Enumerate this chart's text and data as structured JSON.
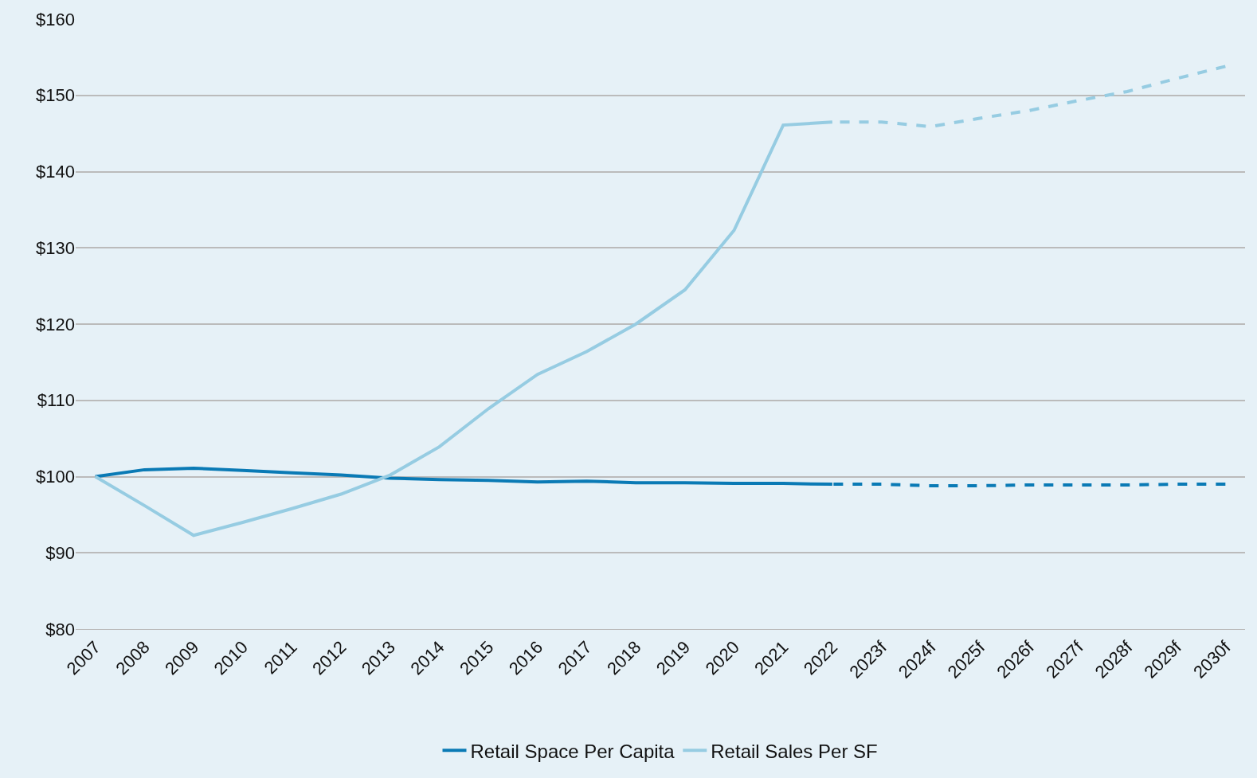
{
  "chart_data": {
    "type": "line",
    "categories": [
      "2007",
      "2008",
      "2009",
      "2010",
      "2011",
      "2012",
      "2013",
      "2014",
      "2015",
      "2016",
      "2017",
      "2018",
      "2019",
      "2020",
      "2021",
      "2022",
      "2023f",
      "2024f",
      "2025f",
      "2026f",
      "2027f",
      "2028f",
      "2029f",
      "2030f"
    ],
    "series": [
      {
        "name": "Retail Space Per Capita",
        "color": "#0a7ab5",
        "line_style": "solid",
        "values": [
          100,
          100.9,
          101.1,
          100.8,
          100.5,
          100.2,
          99.8,
          99.6,
          99.5,
          99.3,
          99.4,
          99.2,
          99.2,
          99.1,
          99.1,
          99.0,
          null,
          null,
          null,
          null,
          null,
          null,
          null,
          null
        ]
      },
      {
        "name": "Retail Sales Per SF",
        "color": "#96cce2",
        "line_style": "solid",
        "values": [
          100,
          96.2,
          92.3,
          94.0,
          95.8,
          97.7,
          100.2,
          103.9,
          108.9,
          113.4,
          116.4,
          120.0,
          124.5,
          132.3,
          146.1,
          146.5,
          null,
          null,
          null,
          null,
          null,
          null,
          null,
          null
        ]
      },
      {
        "color": "#0a7ab5",
        "line_style": "dashed",
        "values": [
          null,
          null,
          null,
          null,
          null,
          null,
          null,
          null,
          null,
          null,
          null,
          null,
          null,
          null,
          null,
          99.0,
          99.0,
          98.8,
          98.8,
          98.9,
          98.9,
          98.9,
          99.0,
          99.0
        ]
      },
      {
        "color": "#96cce2",
        "line_style": "dashed",
        "values": [
          null,
          null,
          null,
          null,
          null,
          null,
          null,
          null,
          null,
          null,
          null,
          null,
          null,
          null,
          null,
          146.5,
          146.5,
          145.9,
          147.0,
          148.0,
          149.3,
          150.5,
          152.2,
          153.8
        ]
      }
    ],
    "ylim": [
      80,
      160
    ],
    "yticks": [
      {
        "value": 80,
        "label": "$80"
      },
      {
        "value": 90,
        "label": "$90"
      },
      {
        "value": 100,
        "label": "$100"
      },
      {
        "value": 110,
        "label": "$110"
      },
      {
        "value": 120,
        "label": "$120"
      },
      {
        "value": 130,
        "label": "$130"
      },
      {
        "value": 140,
        "label": "$140"
      },
      {
        "value": 150,
        "label": "$150"
      },
      {
        "value": 160,
        "label": "$160"
      }
    ],
    "grid": "y",
    "legend": "bottom",
    "marker": "none"
  }
}
